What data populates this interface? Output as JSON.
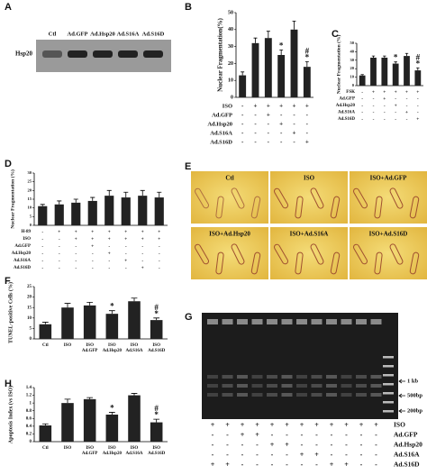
{
  "chart_data": [
    {
      "type": "bar",
      "label": "B",
      "ylabel": "Nuclear Fragmentation(%)",
      "values": [
        13,
        32,
        35,
        25,
        40,
        18
      ],
      "errors": [
        2,
        3,
        4,
        3,
        5,
        3
      ],
      "significance": [
        null,
        null,
        null,
        [
          "*"
        ],
        null,
        [
          "#",
          "*"
        ]
      ],
      "color": "#222222",
      "ylim": [
        0,
        50
      ],
      "yticks": [
        0,
        10,
        20,
        30,
        40,
        50
      ],
      "conditions": [
        {
          "label": "ISO",
          "marks": [
            "-",
            "+",
            "+",
            "+",
            "+",
            "+"
          ]
        },
        {
          "label": "Ad.GFP",
          "marks": [
            "-",
            "-",
            "+",
            "-",
            "-",
            "-"
          ]
        },
        {
          "label": "Ad.Hsp20",
          "marks": [
            "-",
            "-",
            "-",
            "+",
            "-",
            "-"
          ]
        },
        {
          "label": "Ad.S16A",
          "marks": [
            "-",
            "-",
            "-",
            "-",
            "+",
            "-"
          ]
        },
        {
          "label": "Ad.S16D",
          "marks": [
            "-",
            "-",
            "-",
            "-",
            "-",
            "+"
          ]
        }
      ]
    },
    {
      "type": "bar",
      "label": "C",
      "ylabel": "Nuclear Fragmentation (%)",
      "values": [
        12,
        33,
        33,
        26,
        35,
        18
      ],
      "errors": [
        1,
        2,
        2,
        2,
        3,
        3
      ],
      "significance": [
        null,
        null,
        null,
        [
          "*"
        ],
        null,
        [
          "#",
          "*"
        ]
      ],
      "color": "#222222",
      "ylim": [
        0,
        50
      ],
      "yticks": [
        0,
        10,
        20,
        30,
        40,
        50
      ],
      "conditions": [
        {
          "label": "FSK",
          "marks": [
            "-",
            "+",
            "+",
            "+",
            "+",
            "+"
          ]
        },
        {
          "label": "Ad.GFP",
          "marks": [
            "-",
            "-",
            "+",
            "-",
            "-",
            "-"
          ]
        },
        {
          "label": "Ad.Hsp20",
          "marks": [
            "-",
            "-",
            "-",
            "+",
            "-",
            "-"
          ]
        },
        {
          "label": "Ad.S16A",
          "marks": [
            "-",
            "-",
            "-",
            "-",
            "+",
            "-"
          ]
        },
        {
          "label": "Ad.S16D",
          "marks": [
            "-",
            "-",
            "-",
            "-",
            "-",
            "+"
          ]
        }
      ]
    },
    {
      "type": "bar",
      "label": "D",
      "ylabel": "Nuclear Fragmentation (%)",
      "values": [
        11,
        12,
        13,
        14,
        17,
        16,
        17,
        16
      ],
      "errors": [
        1,
        2,
        2,
        2,
        3,
        3,
        3,
        3
      ],
      "color": "#222222",
      "ylim": [
        0,
        30
      ],
      "yticks": [
        0,
        5,
        10,
        15,
        20,
        25,
        30
      ],
      "conditions": [
        {
          "label": "H-89",
          "marks": [
            "-",
            "+",
            "+",
            "+",
            "+",
            "+",
            "+",
            "+"
          ]
        },
        {
          "label": "ISO",
          "marks": [
            "-",
            "-",
            "+",
            "+",
            "+",
            "+",
            "+",
            "+"
          ]
        },
        {
          "label": "Ad.GFP",
          "marks": [
            "-",
            "-",
            "-",
            "+",
            "-",
            "-",
            "-",
            "-"
          ]
        },
        {
          "label": "Ad.Hsp20",
          "marks": [
            "-",
            "-",
            "-",
            "-",
            "+",
            "-",
            "-",
            "-"
          ]
        },
        {
          "label": "Ad.S16A",
          "marks": [
            "-",
            "-",
            "-",
            "-",
            "-",
            "+",
            "-",
            "-"
          ]
        },
        {
          "label": "Ad.S16D",
          "marks": [
            "-",
            "-",
            "-",
            "-",
            "-",
            "-",
            "+",
            "-"
          ]
        }
      ]
    },
    {
      "type": "bar",
      "label": "F",
      "ylabel": "TUNEL-positive Cells (%)",
      "categories": [
        [
          "Ctl"
        ],
        [
          "ISO"
        ],
        [
          "ISO",
          "Ad.GFP"
        ],
        [
          "ISO",
          "Ad.Hsp20"
        ],
        [
          "ISO",
          "Ad.S16A"
        ],
        [
          "ISO",
          "Ad.S16D"
        ]
      ],
      "values": [
        7,
        15,
        16,
        12,
        18,
        9
      ],
      "errors": [
        1,
        2,
        1.5,
        1.5,
        1.5,
        1
      ],
      "significance": [
        null,
        null,
        null,
        [
          "*"
        ],
        null,
        [
          "#",
          "*"
        ]
      ],
      "color": "#222222",
      "ylim": [
        0,
        25
      ],
      "yticks": [
        0,
        5,
        10,
        15,
        20,
        25
      ]
    },
    {
      "type": "bar",
      "label": "H",
      "ylabel": "Apoptosis Index (vs ISO)",
      "categories": [
        [
          "Ctl"
        ],
        [
          "ISO"
        ],
        [
          "ISO",
          "Ad.GFP"
        ],
        [
          "ISO",
          "Ad.Hsp20"
        ],
        [
          "ISO",
          "Ad.S16A"
        ],
        [
          "ISO",
          "Ad.S16D"
        ]
      ],
      "values": [
        0.42,
        1.0,
        1.1,
        0.7,
        1.2,
        0.5
      ],
      "errors": [
        0.04,
        0.1,
        0.04,
        0.06,
        0.05,
        0.08
      ],
      "significance": [
        null,
        null,
        null,
        [
          "*"
        ],
        null,
        [
          "#",
          "*"
        ]
      ],
      "color": "#222222",
      "ylim": [
        0,
        1.4
      ],
      "yticks": [
        0,
        0.2,
        0.4,
        0.6,
        0.8,
        1,
        1.2,
        1.4
      ]
    }
  ],
  "blot": {
    "label": "A",
    "lanes": [
      "Ctl",
      "Ad.GFP",
      "Ad.Hsp20",
      "Ad.S16A",
      "Ad.S16D"
    ],
    "protein": "Hsp20"
  },
  "micrographs": {
    "label": "E",
    "images": [
      "Ctl",
      "ISO",
      "ISO+Ad.GFP",
      "ISO+Ad.Hsp20",
      "ISO+Ad.S16A",
      "ISO+Ad.S16D"
    ]
  },
  "gel": {
    "label": "G",
    "markers": [
      "1 kb",
      "500bp",
      "200bp"
    ],
    "conditions": [
      {
        "label": "ISO",
        "marks": [
          "+",
          "+",
          "+",
          "+",
          "+",
          "+",
          "+",
          "+",
          "+",
          "+",
          "+",
          "+"
        ]
      },
      {
        "label": "Ad.GFP",
        "marks": [
          "-",
          "-",
          "+",
          "+",
          "-",
          "-",
          "-",
          "-",
          "-",
          "-",
          "-",
          "-"
        ]
      },
      {
        "label": "Ad.Hsp20",
        "marks": [
          "-",
          "-",
          "-",
          "-",
          "+",
          "+",
          "-",
          "-",
          "-",
          "-",
          "-",
          "-"
        ]
      },
      {
        "label": "Ad.S16A",
        "marks": [
          "-",
          "-",
          "-",
          "-",
          "-",
          "-",
          "+",
          "+",
          "-",
          "-",
          "-",
          "-"
        ]
      },
      {
        "label": "Ad.S16D",
        "marks": [
          "+",
          "+",
          "-",
          "-",
          "-",
          "-",
          "-",
          "-",
          "+",
          "+",
          "-",
          "-"
        ]
      }
    ]
  }
}
